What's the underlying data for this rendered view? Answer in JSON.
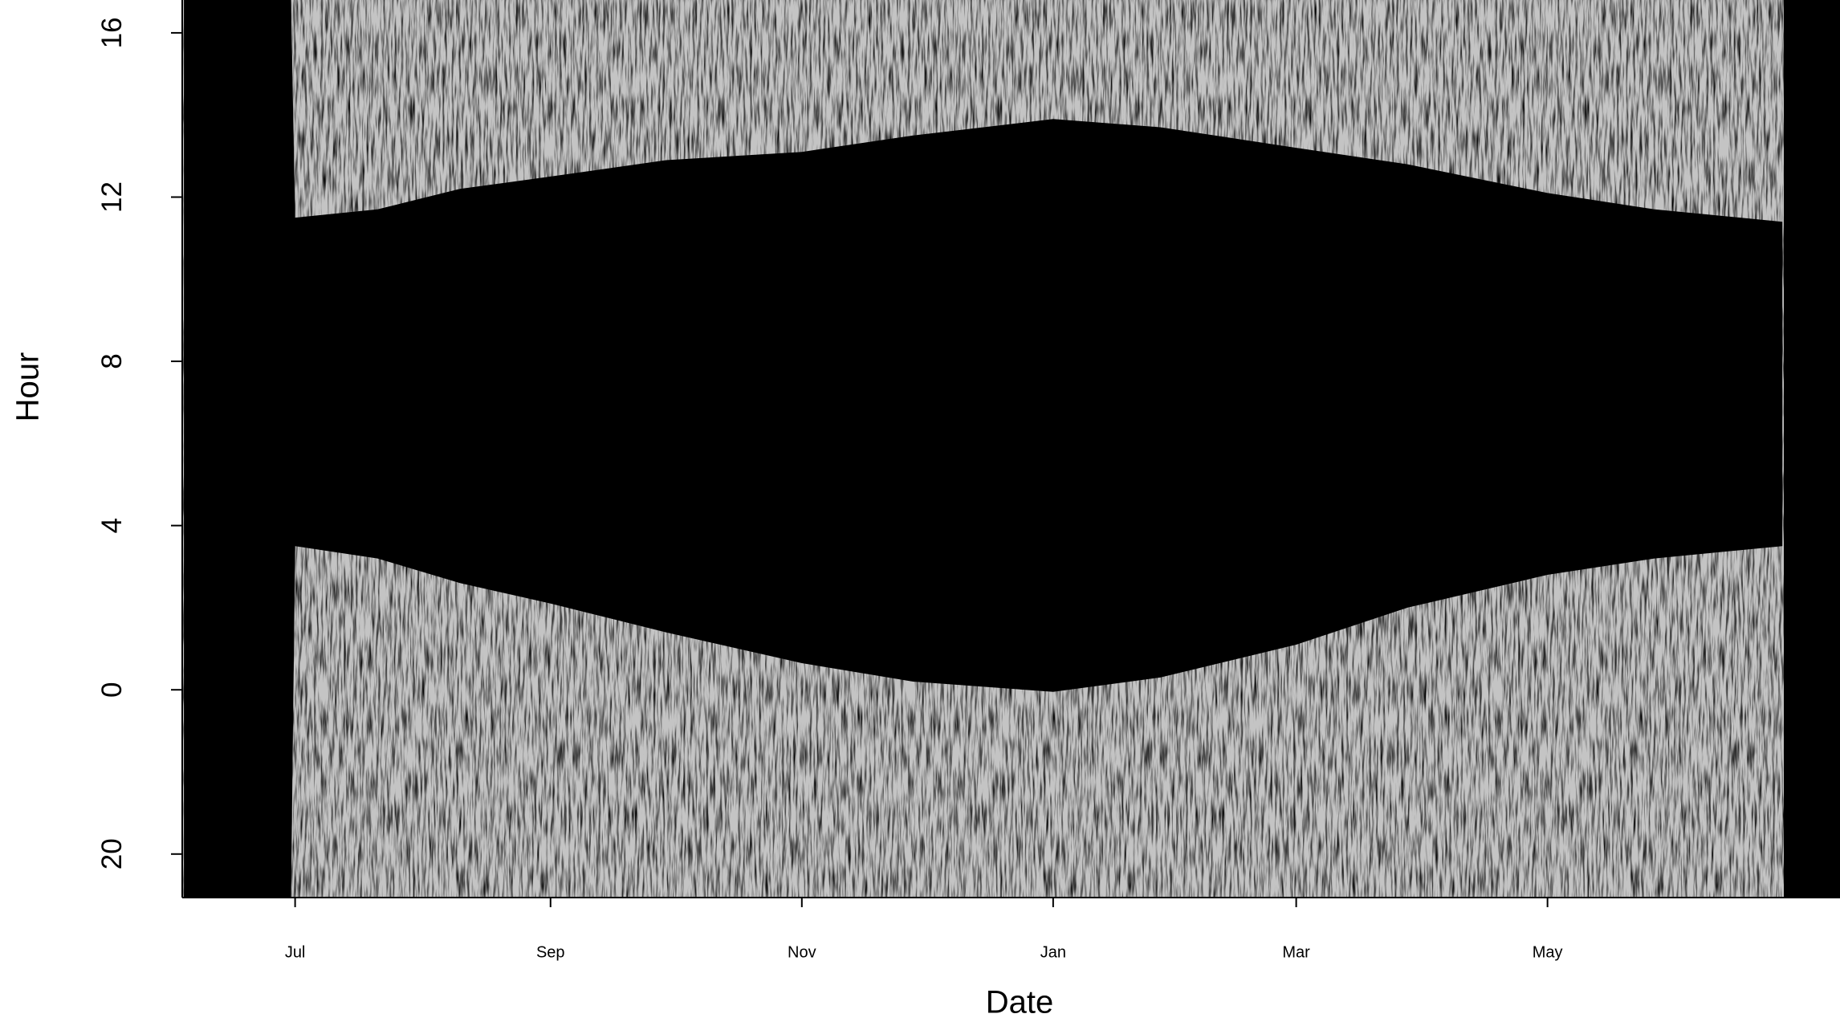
{
  "chart_data": {
    "type": "range-area",
    "x_label": "Date",
    "y_label": "Hour",
    "color": "#000000",
    "x": [
      -27,
      -1,
      0,
      20,
      40,
      62,
      90,
      123,
      150,
      184,
      210,
      243,
      270,
      304,
      330,
      361
    ],
    "low": [
      -5.06,
      -5.06,
      3.5,
      3.2,
      2.6,
      2.1,
      1.4,
      0.65,
      0.2,
      -0.05,
      0.3,
      1.1,
      2.0,
      2.8,
      3.2,
      3.5
    ],
    "high": [
      16.8,
      16.8,
      11.5,
      11.7,
      12.2,
      12.5,
      12.9,
      13.1,
      13.5,
      13.9,
      13.7,
      13.2,
      12.8,
      12.1,
      11.7,
      11.4
    ],
    "xlim": [
      -27.4,
      375
    ],
    "xticks": [
      {
        "value": 0,
        "label": "Jul"
      },
      {
        "value": 62,
        "label": "Sep"
      },
      {
        "value": 123,
        "label": "Nov"
      },
      {
        "value": 184,
        "label": "Jan"
      },
      {
        "value": 243,
        "label": "Mar"
      },
      {
        "value": 304,
        "label": "May"
      }
    ],
    "ylim": [
      -5.06,
      16.8
    ],
    "yticks": [
      {
        "value": -4,
        "label": "20"
      },
      0,
      4,
      8,
      12,
      16
    ]
  }
}
